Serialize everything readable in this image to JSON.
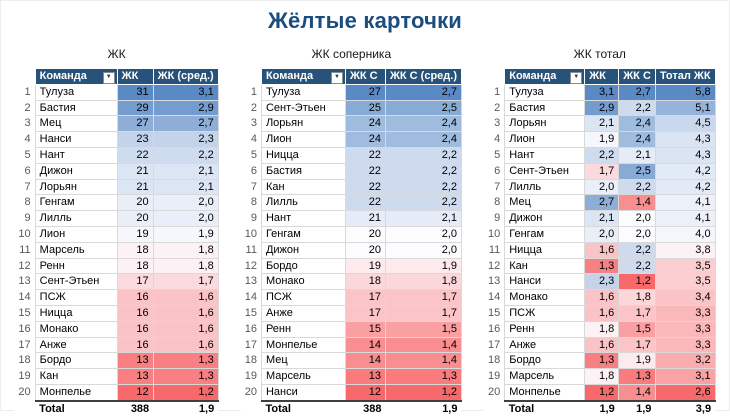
{
  "title": "Жёлтые карточки",
  "colors": {
    "header_bg": "#27537A",
    "title": "#1B4E7E",
    "scale_low": "#F8696B",
    "scale_mid": "#FCFCFF",
    "scale_high": "#5A8AC6"
  },
  "filter_icon": "▼",
  "tables": [
    {
      "subtitle": "ЖК",
      "columns": [
        "Команда",
        "ЖК",
        "ЖК (сред.)"
      ],
      "rows": [
        {
          "rank": "1",
          "team": "Тулуза",
          "values": [
            "31",
            "3,1"
          ]
        },
        {
          "rank": "2",
          "team": "Бастия",
          "values": [
            "29",
            "2,9"
          ]
        },
        {
          "rank": "3",
          "team": "Мец",
          "values": [
            "27",
            "2,7"
          ]
        },
        {
          "rank": "4",
          "team": "Нанси",
          "values": [
            "23",
            "2,3"
          ]
        },
        {
          "rank": "5",
          "team": "Нант",
          "values": [
            "22",
            "2,2"
          ]
        },
        {
          "rank": "6",
          "team": "Дижон",
          "values": [
            "21",
            "2,1"
          ]
        },
        {
          "rank": "7",
          "team": "Лорьян",
          "values": [
            "21",
            "2,1"
          ]
        },
        {
          "rank": "8",
          "team": "Генгам",
          "values": [
            "20",
            "2,0"
          ]
        },
        {
          "rank": "9",
          "team": "Лилль",
          "values": [
            "20",
            "2,0"
          ]
        },
        {
          "rank": "10",
          "team": "Лион",
          "values": [
            "19",
            "1,9"
          ]
        },
        {
          "rank": "11",
          "team": "Марсель",
          "values": [
            "18",
            "1,8"
          ]
        },
        {
          "rank": "12",
          "team": "Ренн",
          "values": [
            "18",
            "1,8"
          ]
        },
        {
          "rank": "13",
          "team": "Сент-Этьен",
          "values": [
            "17",
            "1,7"
          ]
        },
        {
          "rank": "14",
          "team": "ПСЖ",
          "values": [
            "16",
            "1,6"
          ]
        },
        {
          "rank": "15",
          "team": "Ницца",
          "values": [
            "16",
            "1,6"
          ]
        },
        {
          "rank": "16",
          "team": "Монако",
          "values": [
            "16",
            "1,6"
          ]
        },
        {
          "rank": "17",
          "team": "Анже",
          "values": [
            "16",
            "1,6"
          ]
        },
        {
          "rank": "18",
          "team": "Бордо",
          "values": [
            "13",
            "1,3"
          ]
        },
        {
          "rank": "19",
          "team": "Кан",
          "values": [
            "13",
            "1,3"
          ]
        },
        {
          "rank": "20",
          "team": "Монпелье",
          "values": [
            "12",
            "1,2"
          ]
        }
      ],
      "total": {
        "label": "Total",
        "values": [
          "388",
          "1,9"
        ]
      }
    },
    {
      "subtitle": "ЖК соперника",
      "columns": [
        "Команда",
        "ЖК С",
        "ЖК С (сред.)"
      ],
      "rows": [
        {
          "rank": "1",
          "team": "Тулуза",
          "values": [
            "27",
            "2,7"
          ]
        },
        {
          "rank": "2",
          "team": "Сент-Этьен",
          "values": [
            "25",
            "2,5"
          ]
        },
        {
          "rank": "3",
          "team": "Лорьян",
          "values": [
            "24",
            "2,4"
          ]
        },
        {
          "rank": "4",
          "team": "Лион",
          "values": [
            "24",
            "2,4"
          ]
        },
        {
          "rank": "5",
          "team": "Ницца",
          "values": [
            "22",
            "2,2"
          ]
        },
        {
          "rank": "6",
          "team": "Бастия",
          "values": [
            "22",
            "2,2"
          ]
        },
        {
          "rank": "7",
          "team": "Кан",
          "values": [
            "22",
            "2,2"
          ]
        },
        {
          "rank": "8",
          "team": "Лилль",
          "values": [
            "22",
            "2,2"
          ]
        },
        {
          "rank": "9",
          "team": "Нант",
          "values": [
            "21",
            "2,1"
          ]
        },
        {
          "rank": "10",
          "team": "Генгам",
          "values": [
            "20",
            "2,0"
          ]
        },
        {
          "rank": "11",
          "team": "Дижон",
          "values": [
            "20",
            "2,0"
          ]
        },
        {
          "rank": "12",
          "team": "Бордо",
          "values": [
            "19",
            "1,9"
          ]
        },
        {
          "rank": "13",
          "team": "Монако",
          "values": [
            "18",
            "1,8"
          ]
        },
        {
          "rank": "14",
          "team": "ПСЖ",
          "values": [
            "17",
            "1,7"
          ]
        },
        {
          "rank": "15",
          "team": "Анже",
          "values": [
            "17",
            "1,7"
          ]
        },
        {
          "rank": "16",
          "team": "Ренн",
          "values": [
            "15",
            "1,5"
          ]
        },
        {
          "rank": "17",
          "team": "Монпелье",
          "values": [
            "14",
            "1,4"
          ]
        },
        {
          "rank": "18",
          "team": "Мец",
          "values": [
            "14",
            "1,4"
          ]
        },
        {
          "rank": "19",
          "team": "Марсель",
          "values": [
            "13",
            "1,3"
          ]
        },
        {
          "rank": "20",
          "team": "Нанси",
          "values": [
            "12",
            "1,2"
          ]
        }
      ],
      "total": {
        "label": "Total",
        "values": [
          "388",
          "1,9"
        ]
      }
    },
    {
      "subtitle": "ЖК тотал",
      "columns": [
        "Команда",
        "ЖК",
        "ЖК С",
        "Тотал ЖК"
      ],
      "rows": [
        {
          "rank": "1",
          "team": "Тулуза",
          "values": [
            "3,1",
            "2,7",
            "5,8"
          ]
        },
        {
          "rank": "2",
          "team": "Бастия",
          "values": [
            "2,9",
            "2,2",
            "5,1"
          ]
        },
        {
          "rank": "3",
          "team": "Лорьян",
          "values": [
            "2,1",
            "2,4",
            "4,5"
          ]
        },
        {
          "rank": "4",
          "team": "Лион",
          "values": [
            "1,9",
            "2,4",
            "4,3"
          ]
        },
        {
          "rank": "5",
          "team": "Нант",
          "values": [
            "2,2",
            "2,1",
            "4,3"
          ]
        },
        {
          "rank": "6",
          "team": "Сент-Этьен",
          "values": [
            "1,7",
            "2,5",
            "4,2"
          ]
        },
        {
          "rank": "7",
          "team": "Лилль",
          "values": [
            "2,0",
            "2,2",
            "4,2"
          ]
        },
        {
          "rank": "8",
          "team": "Мец",
          "values": [
            "2,7",
            "1,4",
            "4,1"
          ]
        },
        {
          "rank": "9",
          "team": "Дижон",
          "values": [
            "2,1",
            "2,0",
            "4,1"
          ]
        },
        {
          "rank": "10",
          "team": "Генгам",
          "values": [
            "2,0",
            "2,0",
            "4,0"
          ]
        },
        {
          "rank": "11",
          "team": "Ницца",
          "values": [
            "1,6",
            "2,2",
            "3,8"
          ]
        },
        {
          "rank": "12",
          "team": "Кан",
          "values": [
            "1,3",
            "2,2",
            "3,5"
          ]
        },
        {
          "rank": "13",
          "team": "Нанси",
          "values": [
            "2,3",
            "1,2",
            "3,5"
          ]
        },
        {
          "rank": "14",
          "team": "Монако",
          "values": [
            "1,6",
            "1,8",
            "3,4"
          ]
        },
        {
          "rank": "15",
          "team": "ПСЖ",
          "values": [
            "1,6",
            "1,7",
            "3,3"
          ]
        },
        {
          "rank": "16",
          "team": "Ренн",
          "values": [
            "1,8",
            "1,5",
            "3,3"
          ]
        },
        {
          "rank": "17",
          "team": "Анже",
          "values": [
            "1,6",
            "1,7",
            "3,3"
          ]
        },
        {
          "rank": "18",
          "team": "Бордо",
          "values": [
            "1,3",
            "1,9",
            "3,2"
          ]
        },
        {
          "rank": "19",
          "team": "Марсель",
          "values": [
            "1,8",
            "1,3",
            "3,1"
          ]
        },
        {
          "rank": "20",
          "team": "Монпелье",
          "values": [
            "1,2",
            "1,4",
            "2,6"
          ]
        }
      ],
      "total": {
        "label": "Total",
        "values": [
          "1,9",
          "1,9",
          "3,9"
        ]
      }
    }
  ]
}
